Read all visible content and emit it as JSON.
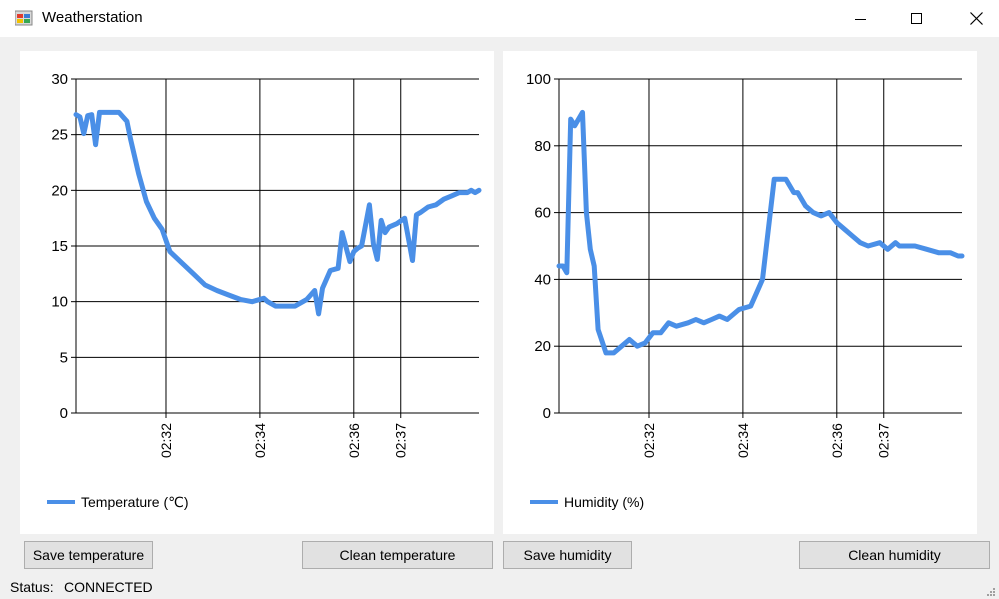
{
  "window": {
    "title": "Weatherstation"
  },
  "colors": {
    "series": "#4a8fe7",
    "grid": "#000000",
    "window_bg": "#f0f0f0"
  },
  "icons": {
    "app": "app-icon",
    "minimize": "minimize-icon",
    "maximize": "maximize-icon",
    "close": "close-icon",
    "grip": "resize-grip-icon"
  },
  "buttons": {
    "save_temperature": "Save temperature",
    "clean_temperature": "Clean temperature",
    "save_humidity": "Save humidity",
    "clean_humidity": "Clean humidity"
  },
  "status": {
    "label": "Status:",
    "value": "CONNECTED"
  },
  "chart_data": [
    {
      "type": "line",
      "title": "",
      "xlabel": "",
      "ylabel": "",
      "ylim": [
        0,
        30
      ],
      "yticks": [
        0,
        5,
        10,
        15,
        20,
        25,
        30
      ],
      "xlim": [
        "02:30:05",
        "02:38:40"
      ],
      "xticks": [
        "02:32",
        "02:34",
        "02:36",
        "02:37"
      ],
      "grid": true,
      "legend": "bottom-left",
      "series": [
        {
          "name": "Temperature (℃)",
          "x": [
            "02:30:05",
            "02:30:10",
            "02:30:15",
            "02:30:20",
            "02:30:25",
            "02:30:30",
            "02:30:35",
            "02:30:40",
            "02:30:45",
            "02:30:50",
            "02:31:00",
            "02:31:10",
            "02:31:15",
            "02:31:25",
            "02:31:35",
            "02:31:45",
            "02:31:55",
            "02:32:05",
            "02:32:20",
            "02:32:35",
            "02:32:50",
            "02:33:05",
            "02:33:20",
            "02:33:35",
            "02:33:50",
            "02:34:05",
            "02:34:10",
            "02:34:20",
            "02:34:25",
            "02:34:35",
            "02:34:45",
            "02:35:00",
            "02:35:10",
            "02:35:15",
            "02:35:20",
            "02:35:25",
            "02:35:30",
            "02:35:40",
            "02:35:45",
            "02:35:55",
            "02:36:00",
            "02:36:05",
            "02:36:10",
            "02:36:20",
            "02:36:25",
            "02:36:30",
            "02:36:35",
            "02:36:40",
            "02:36:45",
            "02:36:55",
            "02:37:05",
            "02:37:15",
            "02:37:20",
            "02:37:25",
            "02:37:35",
            "02:37:45",
            "02:37:55",
            "02:38:05",
            "02:38:15",
            "02:38:25",
            "02:38:30",
            "02:38:35",
            "02:38:40"
          ],
          "y": [
            26.8,
            26.6,
            25.1,
            26.7,
            26.8,
            24.1,
            27.0,
            27.0,
            27.0,
            27.0,
            27.0,
            26.2,
            24.5,
            21.5,
            19.0,
            17.5,
            16.5,
            14.5,
            13.5,
            12.5,
            11.5,
            11.0,
            10.6,
            10.2,
            10.0,
            10.3,
            10.0,
            9.6,
            9.6,
            9.6,
            9.6,
            10.2,
            11.0,
            8.9,
            11.2,
            12.0,
            12.8,
            13.0,
            16.2,
            13.6,
            14.5,
            14.8,
            15.0,
            18.7,
            15.2,
            13.8,
            17.3,
            16.2,
            16.7,
            17.0,
            17.5,
            13.7,
            17.8,
            18.0,
            18.5,
            18.7,
            19.2,
            19.5,
            19.8,
            19.8,
            20.0,
            19.8,
            20.0
          ]
        }
      ]
    },
    {
      "type": "line",
      "title": "",
      "xlabel": "",
      "ylabel": "",
      "ylim": [
        0,
        100
      ],
      "yticks": [
        0,
        20,
        40,
        60,
        80,
        100
      ],
      "xlim": [
        "02:30:05",
        "02:38:40"
      ],
      "xticks": [
        "02:32",
        "02:34",
        "02:36",
        "02:37"
      ],
      "grid": true,
      "legend": "bottom-left",
      "series": [
        {
          "name": "Humidity (%)",
          "x": [
            "02:30:05",
            "02:30:10",
            "02:30:15",
            "02:30:20",
            "02:30:25",
            "02:30:35",
            "02:30:40",
            "02:30:45",
            "02:30:50",
            "02:30:55",
            "02:31:05",
            "02:31:15",
            "02:31:25",
            "02:31:35",
            "02:31:45",
            "02:31:55",
            "02:32:05",
            "02:32:15",
            "02:32:25",
            "02:32:35",
            "02:32:50",
            "02:33:00",
            "02:33:10",
            "02:33:20",
            "02:33:30",
            "02:33:40",
            "02:33:55",
            "02:34:10",
            "02:34:25",
            "02:34:40",
            "02:34:55",
            "02:35:00",
            "02:35:05",
            "02:35:10",
            "02:35:20",
            "02:35:30",
            "02:35:40",
            "02:35:50",
            "02:36:00",
            "02:36:10",
            "02:36:20",
            "02:36:30",
            "02:36:40",
            "02:36:55",
            "02:37:05",
            "02:37:15",
            "02:37:20",
            "02:37:30",
            "02:37:40",
            "02:37:55",
            "02:38:10",
            "02:38:25",
            "02:38:35",
            "02:38:40"
          ],
          "y": [
            44,
            44,
            42,
            88,
            86,
            90,
            60,
            49,
            44,
            25,
            18,
            18,
            20,
            22,
            20,
            21,
            24,
            24,
            27,
            26,
            27,
            28,
            27,
            28,
            29,
            28,
            31,
            32,
            40,
            70,
            70,
            68,
            66,
            66,
            62,
            60,
            59,
            60,
            57,
            55,
            53,
            51,
            50,
            51,
            49,
            51,
            50,
            50,
            50,
            49,
            48,
            48,
            47,
            47
          ]
        }
      ]
    }
  ]
}
